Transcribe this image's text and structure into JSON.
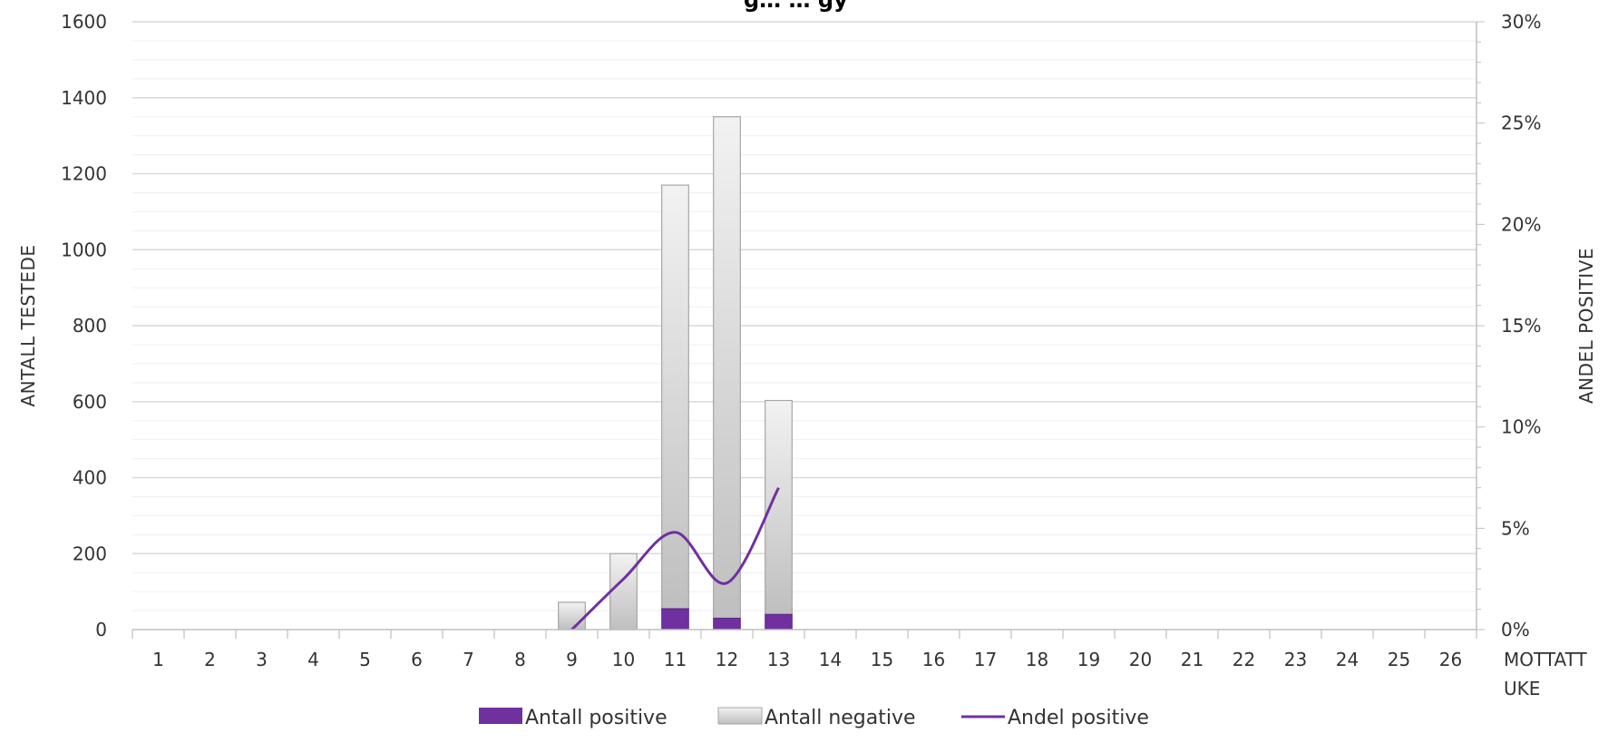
{
  "chart_data": {
    "type": "bar",
    "title": "g… … gy",
    "categories": [
      "1",
      "2",
      "3",
      "4",
      "5",
      "6",
      "7",
      "8",
      "9",
      "10",
      "11",
      "12",
      "13",
      "14",
      "15",
      "16",
      "17",
      "18",
      "19",
      "20",
      "21",
      "22",
      "23",
      "24",
      "25",
      "26"
    ],
    "series": [
      {
        "name": "Antall positive",
        "type": "bar",
        "stacked": true,
        "color": "#7030a0",
        "values": [
          0,
          0,
          0,
          0,
          0,
          0,
          0,
          0,
          0,
          0,
          55,
          30,
          40,
          0,
          0,
          0,
          0,
          0,
          0,
          0,
          0,
          0,
          0,
          0,
          0,
          0
        ]
      },
      {
        "name": "Antall negative",
        "type": "bar",
        "stacked": true,
        "color": "#d9d9d9",
        "values": [
          0,
          0,
          0,
          0,
          0,
          0,
          0,
          0,
          72,
          200,
          1115,
          1320,
          563,
          0,
          0,
          0,
          0,
          0,
          0,
          0,
          0,
          0,
          0,
          0,
          0,
          0
        ]
      },
      {
        "name": "Andel positive",
        "type": "line",
        "axis": "right",
        "color": "#7030a0",
        "values": [
          null,
          null,
          null,
          null,
          null,
          null,
          null,
          null,
          0.0,
          0.025,
          0.048,
          0.023,
          0.07,
          null,
          null,
          null,
          null,
          null,
          null,
          null,
          null,
          null,
          null,
          null,
          null,
          null
        ]
      }
    ],
    "ylabel": "ANTALL TESTEDE",
    "ylabel_right": "ANDEL POSITIVE",
    "xlabel": "MOTTATT UKE",
    "ylim": [
      0,
      1600
    ],
    "yticks": [
      "0",
      "200",
      "400",
      "600",
      "800",
      "1000",
      "1200",
      "1400",
      "1600"
    ],
    "ylim_right": [
      0,
      0.3
    ],
    "yticks_right": [
      "0%",
      "5%",
      "10%",
      "15%",
      "20%",
      "25%",
      "30%"
    ],
    "grid": true,
    "legend_position": "bottom"
  }
}
